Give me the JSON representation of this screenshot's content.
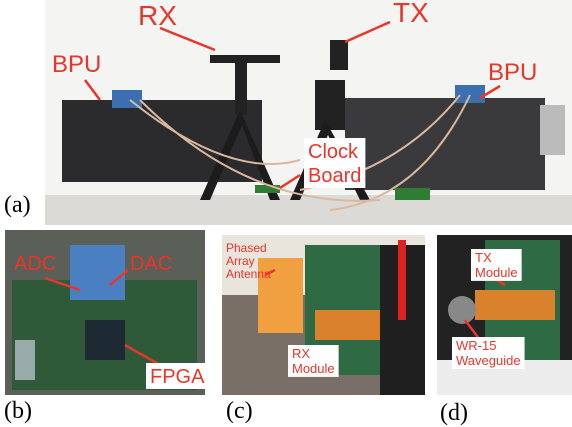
{
  "panels": [
    {
      "label": "(a)",
      "annotations": [
        {
          "lines": [
            "RX"
          ]
        },
        {
          "lines": [
            "TX"
          ]
        },
        {
          "lines": [
            "BPU"
          ]
        },
        {
          "lines": [
            "BPU"
          ]
        },
        {
          "lines": [
            "Clock",
            "Board"
          ]
        }
      ]
    },
    {
      "label": "(b)",
      "annotations": [
        {
          "lines": [
            "ADC"
          ]
        },
        {
          "lines": [
            "DAC"
          ]
        },
        {
          "lines": [
            "FPGA"
          ]
        }
      ]
    },
    {
      "label": "(c)",
      "annotations": [
        {
          "lines": [
            "Phased",
            "Array",
            "Antenna"
          ]
        },
        {
          "lines": [
            "RX",
            "Module"
          ]
        }
      ]
    },
    {
      "label": "(d)",
      "annotations": [
        {
          "lines": [
            "TX",
            "Module"
          ]
        },
        {
          "lines": [
            "WR-15",
            "Waveguide"
          ]
        }
      ]
    }
  ]
}
